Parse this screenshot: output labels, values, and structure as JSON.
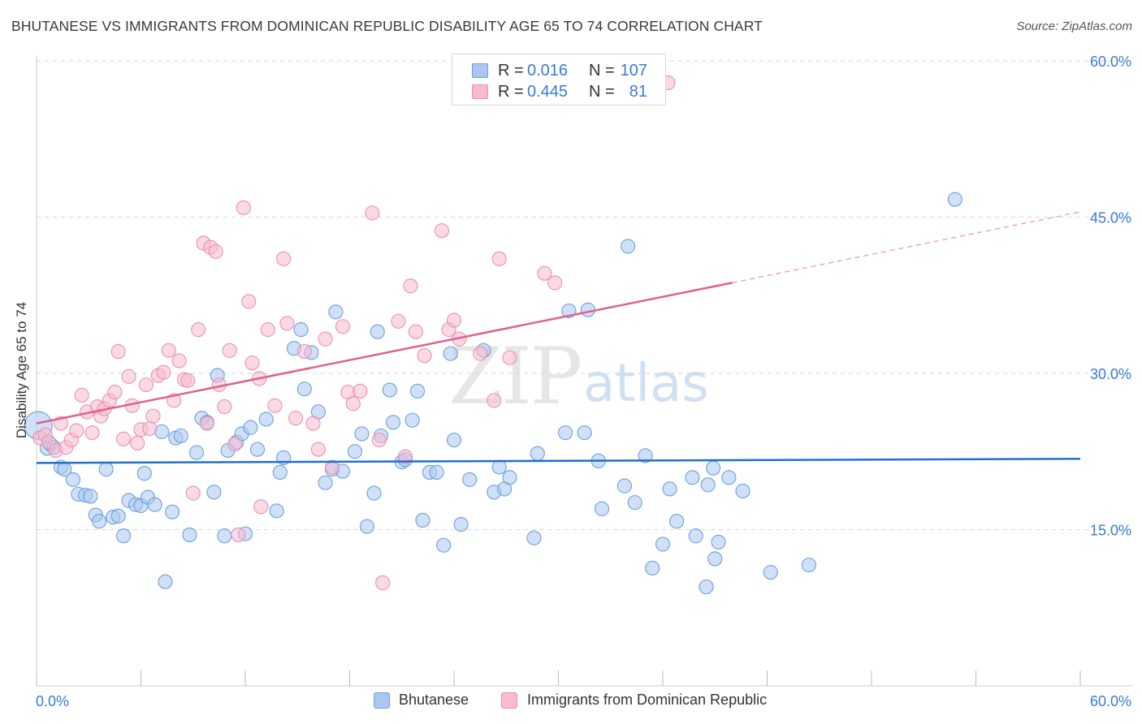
{
  "title": "BHUTANESE VS IMMIGRANTS FROM DOMINICAN REPUBLIC DISABILITY AGE 65 TO 74 CORRELATION CHART",
  "source": "Source: ZipAtlas.com",
  "watermark": {
    "zip": "ZIP",
    "atlas": "atlas"
  },
  "colors": {
    "blue_fill": "#a9c8f0",
    "blue_stroke": "#6b9fe0",
    "blue_line": "#1f6fd0",
    "pink_fill": "#f7bcd0",
    "pink_stroke": "#ec8fb0",
    "pink_line": "#e0608c",
    "value_text": "#3a7bd5",
    "grid": "#d6d6d6"
  },
  "stats": {
    "blue": {
      "r_key": "R =",
      "r_val": "0.016",
      "n_key": "N =",
      "n_val": "107"
    },
    "pink": {
      "r_key": "R =",
      "r_val": "0.445",
      "n_key": "N =",
      "n_val": "81"
    }
  },
  "legend": {
    "blue": "Bhutanese",
    "pink": "Immigrants from Dominican Republic"
  },
  "chart_data": {
    "type": "scatter",
    "title": "BHUTANESE VS IMMIGRANTS FROM DOMINICAN REPUBLIC DISABILITY AGE 65 TO 74 CORRELATION CHART",
    "xlabel": "",
    "ylabel": "Disability Age 65 to 74",
    "xlim": [
      0,
      60
    ],
    "ylim": [
      0,
      60
    ],
    "x_tick_labels": [
      "0.0%",
      "60.0%"
    ],
    "y_tick_labels": [
      "15.0%",
      "30.0%",
      "45.0%",
      "60.0%"
    ],
    "y_ticks": [
      15,
      30,
      45,
      60
    ],
    "grid": true,
    "legend_position": "bottom-center",
    "series": [
      {
        "name": "Bhutanese",
        "color": "#a9c8f0",
        "trend": {
          "x": [
            0,
            60
          ],
          "y": [
            21.4,
            21.8
          ]
        },
        "points": [
          [
            0.1,
            25.0
          ],
          [
            0.6,
            22.8
          ],
          [
            0.8,
            23.2
          ],
          [
            1.0,
            22.9
          ],
          [
            1.4,
            21.0
          ],
          [
            1.6,
            20.8
          ],
          [
            2.1,
            19.8
          ],
          [
            2.4,
            18.4
          ],
          [
            2.8,
            18.3
          ],
          [
            3.1,
            18.2
          ],
          [
            3.4,
            16.4
          ],
          [
            3.6,
            15.8
          ],
          [
            4.0,
            20.8
          ],
          [
            4.4,
            16.2
          ],
          [
            4.7,
            16.3
          ],
          [
            5.0,
            14.4
          ],
          [
            5.3,
            17.8
          ],
          [
            5.7,
            17.4
          ],
          [
            6.0,
            17.3
          ],
          [
            6.2,
            20.4
          ],
          [
            6.4,
            18.1
          ],
          [
            6.8,
            17.4
          ],
          [
            7.2,
            24.4
          ],
          [
            7.4,
            10.0
          ],
          [
            7.8,
            16.7
          ],
          [
            8.0,
            23.8
          ],
          [
            8.3,
            24.0
          ],
          [
            8.8,
            14.5
          ],
          [
            9.2,
            22.4
          ],
          [
            9.5,
            25.7
          ],
          [
            9.8,
            25.3
          ],
          [
            10.2,
            18.6
          ],
          [
            10.4,
            29.8
          ],
          [
            10.8,
            14.4
          ],
          [
            11.0,
            22.6
          ],
          [
            11.5,
            23.4
          ],
          [
            11.8,
            24.2
          ],
          [
            12.0,
            14.6
          ],
          [
            12.3,
            24.8
          ],
          [
            12.7,
            22.7
          ],
          [
            13.2,
            25.6
          ],
          [
            13.8,
            16.8
          ],
          [
            14.0,
            20.5
          ],
          [
            14.2,
            21.9
          ],
          [
            14.8,
            32.4
          ],
          [
            15.2,
            34.2
          ],
          [
            15.4,
            28.5
          ],
          [
            15.8,
            32.0
          ],
          [
            16.2,
            26.3
          ],
          [
            16.6,
            19.5
          ],
          [
            17.0,
            20.8
          ],
          [
            17.2,
            35.9
          ],
          [
            17.6,
            20.6
          ],
          [
            18.3,
            22.5
          ],
          [
            18.7,
            24.2
          ],
          [
            19.0,
            15.3
          ],
          [
            19.4,
            18.5
          ],
          [
            19.6,
            34.0
          ],
          [
            19.8,
            24.0
          ],
          [
            20.3,
            28.4
          ],
          [
            20.5,
            25.3
          ],
          [
            21.0,
            21.5
          ],
          [
            21.2,
            21.7
          ],
          [
            21.6,
            25.5
          ],
          [
            21.9,
            28.3
          ],
          [
            22.2,
            15.9
          ],
          [
            22.6,
            20.5
          ],
          [
            23.0,
            20.5
          ],
          [
            23.4,
            13.5
          ],
          [
            23.8,
            31.9
          ],
          [
            24.0,
            23.6
          ],
          [
            24.4,
            15.5
          ],
          [
            24.9,
            19.8
          ],
          [
            25.7,
            32.2
          ],
          [
            26.3,
            18.6
          ],
          [
            26.6,
            21.0
          ],
          [
            26.9,
            18.9
          ],
          [
            27.2,
            20.0
          ],
          [
            28.6,
            14.2
          ],
          [
            28.8,
            22.3
          ],
          [
            30.4,
            24.3
          ],
          [
            30.6,
            36.0
          ],
          [
            31.5,
            24.3
          ],
          [
            31.7,
            36.1
          ],
          [
            32.3,
            21.6
          ],
          [
            32.5,
            17.0
          ],
          [
            33.8,
            19.2
          ],
          [
            34.0,
            42.2
          ],
          [
            34.4,
            17.6
          ],
          [
            35.0,
            22.1
          ],
          [
            35.4,
            11.3
          ],
          [
            36.0,
            13.6
          ],
          [
            36.4,
            18.9
          ],
          [
            36.8,
            15.8
          ],
          [
            37.7,
            20.0
          ],
          [
            37.9,
            14.4
          ],
          [
            38.5,
            9.5
          ],
          [
            38.6,
            19.3
          ],
          [
            38.9,
            20.9
          ],
          [
            39.0,
            12.2
          ],
          [
            39.2,
            13.8
          ],
          [
            39.8,
            20.0
          ],
          [
            40.6,
            18.7
          ],
          [
            42.2,
            10.9
          ],
          [
            44.4,
            11.6
          ],
          [
            52.8,
            46.7
          ]
        ]
      },
      {
        "name": "Immigrants from Dominican Republic",
        "color": "#f7bcd0",
        "trend": {
          "x": [
            0,
            40
          ],
          "y": [
            25.2,
            38.7
          ]
        },
        "trend_dashed": {
          "x": [
            40,
            60
          ],
          "y": [
            38.7,
            45.5
          ]
        },
        "points": [
          [
            0.2,
            23.8
          ],
          [
            0.5,
            24.1
          ],
          [
            0.7,
            23.4
          ],
          [
            1.1,
            22.6
          ],
          [
            1.4,
            25.2
          ],
          [
            1.7,
            22.9
          ],
          [
            2.0,
            23.6
          ],
          [
            2.3,
            24.5
          ],
          [
            2.6,
            27.9
          ],
          [
            2.9,
            26.3
          ],
          [
            3.2,
            24.3
          ],
          [
            3.5,
            26.8
          ],
          [
            3.7,
            25.9
          ],
          [
            3.9,
            26.6
          ],
          [
            4.2,
            27.4
          ],
          [
            4.5,
            28.2
          ],
          [
            4.7,
            32.1
          ],
          [
            5.0,
            23.7
          ],
          [
            5.3,
            29.7
          ],
          [
            5.5,
            26.9
          ],
          [
            5.8,
            23.3
          ],
          [
            6.0,
            24.6
          ],
          [
            6.3,
            28.9
          ],
          [
            6.5,
            24.7
          ],
          [
            6.7,
            25.9
          ],
          [
            7.0,
            29.8
          ],
          [
            7.3,
            30.1
          ],
          [
            7.6,
            32.2
          ],
          [
            7.9,
            27.4
          ],
          [
            8.2,
            31.2
          ],
          [
            8.5,
            29.4
          ],
          [
            8.7,
            29.3
          ],
          [
            9.0,
            18.5
          ],
          [
            9.3,
            34.2
          ],
          [
            9.6,
            42.5
          ],
          [
            9.8,
            25.2
          ],
          [
            10.0,
            42.1
          ],
          [
            10.3,
            41.7
          ],
          [
            10.5,
            28.9
          ],
          [
            10.8,
            26.8
          ],
          [
            11.1,
            32.2
          ],
          [
            11.4,
            23.2
          ],
          [
            11.6,
            14.5
          ],
          [
            11.9,
            45.9
          ],
          [
            12.2,
            36.9
          ],
          [
            12.4,
            31.0
          ],
          [
            12.8,
            29.5
          ],
          [
            12.9,
            17.2
          ],
          [
            13.3,
            34.2
          ],
          [
            13.7,
            26.9
          ],
          [
            14.2,
            41.0
          ],
          [
            14.4,
            34.8
          ],
          [
            14.9,
            25.7
          ],
          [
            15.4,
            32.1
          ],
          [
            15.9,
            25.2
          ],
          [
            16.2,
            22.7
          ],
          [
            16.6,
            33.3
          ],
          [
            17.0,
            21.0
          ],
          [
            17.6,
            34.5
          ],
          [
            17.9,
            28.2
          ],
          [
            18.2,
            27.1
          ],
          [
            18.6,
            28.3
          ],
          [
            19.3,
            45.4
          ],
          [
            19.7,
            23.6
          ],
          [
            19.9,
            9.9
          ],
          [
            20.8,
            35.0
          ],
          [
            21.2,
            22.0
          ],
          [
            21.5,
            38.4
          ],
          [
            21.8,
            34.0
          ],
          [
            22.3,
            31.7
          ],
          [
            23.3,
            43.7
          ],
          [
            23.7,
            34.2
          ],
          [
            24.0,
            35.1
          ],
          [
            24.3,
            33.3
          ],
          [
            25.5,
            31.9
          ],
          [
            26.3,
            27.4
          ],
          [
            26.6,
            41.0
          ],
          [
            27.2,
            31.5
          ],
          [
            29.2,
            39.6
          ],
          [
            29.8,
            38.7
          ],
          [
            36.3,
            57.9
          ]
        ]
      }
    ]
  }
}
